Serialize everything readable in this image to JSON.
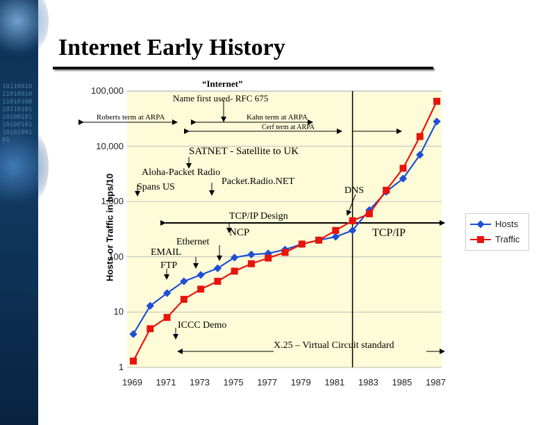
{
  "slide": {
    "title": "Internet Early History"
  },
  "colors": {
    "hosts": "#1f4fd6",
    "traffic": "#e8140c",
    "plot_bg": "#fefcd8"
  },
  "annotations": {
    "internet_quote": "“Internet”",
    "name_first_used": "Name first used- RFC 675",
    "roberts": "Roberts term at ARPA",
    "kahn": "Kahn term at ARPA",
    "cerf": "Cerf term at ARPA",
    "satnet": "SATNET - Satellite to UK",
    "aloha": "Aloha-Packet Radio",
    "packet_radio_net": "Packet.Radio.NET",
    "spans_us": "Spans US",
    "dns": "DNS",
    "tcpip_design": "TCP/IP Design",
    "ncp": "NCP",
    "tcpip": "TCP/IP",
    "ethernet": "Ethernet",
    "email": "EMAIL",
    "ftp": "FTP",
    "iccc": "ICCC Demo",
    "x25": "X.25 – Virtual Circuit standard"
  },
  "chart_data": {
    "type": "line",
    "title": "",
    "xlabel": "",
    "ylabel": "Hosts or Traffic in bps/10",
    "y_scale": "log",
    "ylim": [
      1,
      100000
    ],
    "xlim": [
      1969,
      1987
    ],
    "y_ticks": [
      "1",
      "10",
      "100",
      "1,000",
      "10,000",
      "100,000"
    ],
    "x_ticks": [
      "1969",
      "1971",
      "1973",
      "1975",
      "1977",
      "1979",
      "1981",
      "1983",
      "1985",
      "1987"
    ],
    "legend_position": "right",
    "series": [
      {
        "name": "Hosts",
        "x": [
          1969,
          1970,
          1971,
          1972,
          1973,
          1974,
          1975,
          1976,
          1977,
          1978,
          1979,
          1980,
          1981,
          1982,
          1983,
          1984,
          1985,
          1986,
          1987
        ],
        "y": [
          4,
          13,
          22,
          36,
          47,
          62,
          97,
          110,
          115,
          135,
          170,
          200,
          230,
          300,
          700,
          1500,
          2600,
          7000,
          28000
        ]
      },
      {
        "name": "Traffic",
        "x": [
          1969,
          1970,
          1971,
          1972,
          1973,
          1974,
          1975,
          1976,
          1977,
          1978,
          1979,
          1980,
          1981,
          1982,
          1983,
          1984,
          1985,
          1986,
          1987
        ],
        "y": [
          1.3,
          5,
          8,
          17,
          26,
          36,
          55,
          75,
          95,
          120,
          170,
          200,
          300,
          450,
          600,
          1600,
          4000,
          15000,
          65000
        ]
      }
    ]
  }
}
